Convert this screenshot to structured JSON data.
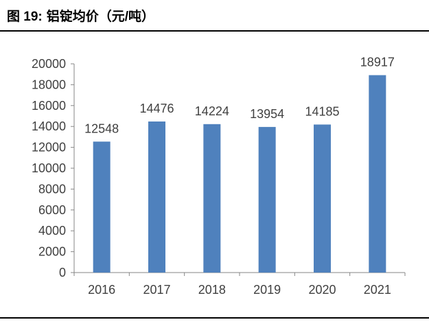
{
  "figure": {
    "label": "图 19:",
    "caption": "铝锭均价（元/吨）"
  },
  "chart_data": {
    "type": "bar",
    "categories": [
      "2016",
      "2017",
      "2018",
      "2019",
      "2020",
      "2021"
    ],
    "values": [
      12548,
      14476,
      14224,
      13954,
      14185,
      18917
    ],
    "data_labels": [
      "12548",
      "14476",
      "14224",
      "13954",
      "14185",
      "18917"
    ],
    "y_ticks": [
      0,
      2000,
      4000,
      6000,
      8000,
      10000,
      12000,
      14000,
      16000,
      18000,
      20000
    ],
    "ylim": [
      0,
      20000
    ],
    "title": "",
    "xlabel": "",
    "ylabel": "",
    "grid": false,
    "bar_color": "#4f81bd"
  }
}
